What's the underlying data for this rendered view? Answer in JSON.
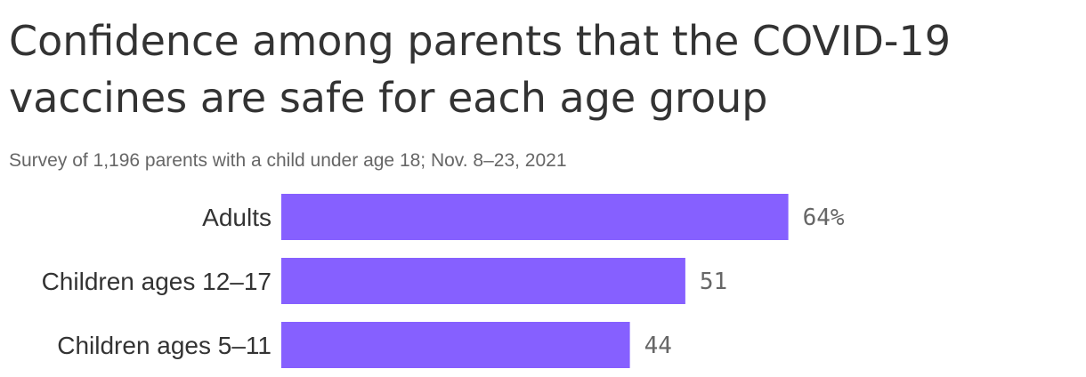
{
  "title": "Confidence among parents that the COVID-19 vaccines are safe for each age group",
  "subtitle": "Survey of 1,196 parents with a child under age 18; Nov. 8–23, 2021",
  "chart_data": {
    "type": "bar",
    "orientation": "horizontal",
    "title": "Confidence among parents that the COVID-19 vaccines are safe for each age group",
    "subtitle": "Survey of 1,196 parents with a child under age 18; Nov. 8–23, 2021",
    "categories": [
      "Adults",
      "Children ages 12–17",
      "Children ages 5–11"
    ],
    "values": [
      64,
      51,
      44
    ],
    "value_labels": [
      "64%",
      "51",
      "44"
    ],
    "xlim": [
      0,
      100
    ],
    "grid": false,
    "legend": "none",
    "bar_color": "#8660ff"
  }
}
